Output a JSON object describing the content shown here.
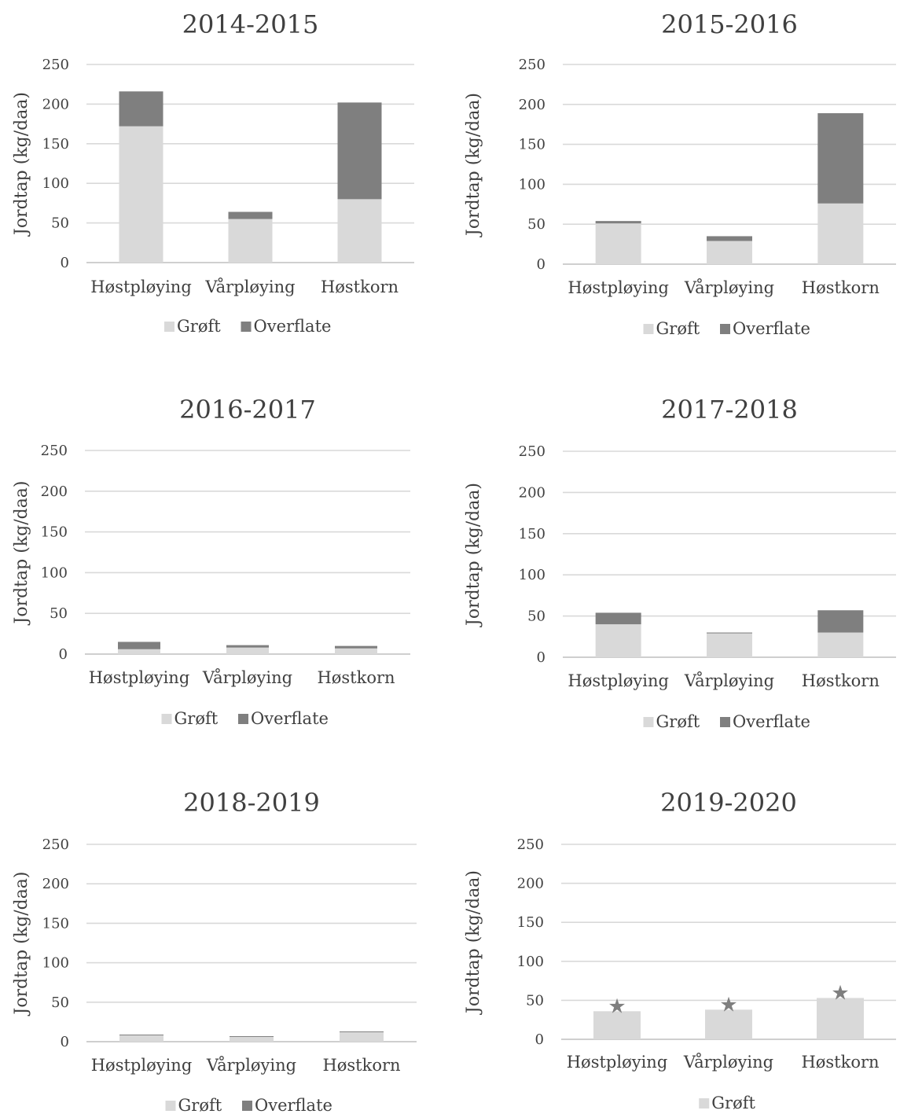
{
  "chart_data": [
    {
      "type": "bar",
      "stacked": true,
      "title": "2014-2015",
      "ylabel": "Jordtap (kg/daa)",
      "xlabel": "",
      "ylim": [
        0,
        250
      ],
      "yticks": [
        0,
        50,
        100,
        150,
        200,
        250
      ],
      "grid": true,
      "legend": "bottom",
      "categories": [
        "Høstpløying",
        "Vårpløying",
        "Høstkorn"
      ],
      "series": [
        {
          "name": "Grøft",
          "color": "#d9d9d9",
          "values": [
            172,
            55,
            80
          ]
        },
        {
          "name": "Overflate",
          "color": "#7f7f7f",
          "values": [
            44,
            9,
            122
          ]
        }
      ]
    },
    {
      "type": "bar",
      "stacked": true,
      "title": "2015-2016",
      "ylabel": "Jordtap (kg/daa)",
      "xlabel": "",
      "ylim": [
        0,
        250
      ],
      "yticks": [
        0,
        50,
        100,
        150,
        200,
        250
      ],
      "grid": true,
      "legend": "bottom",
      "categories": [
        "Høstpløying",
        "Vårpløying",
        "Høstkorn"
      ],
      "series": [
        {
          "name": "Grøft",
          "color": "#d9d9d9",
          "values": [
            51,
            29,
            76
          ]
        },
        {
          "name": "Overflate",
          "color": "#7f7f7f",
          "values": [
            3,
            6,
            113
          ]
        }
      ]
    },
    {
      "type": "bar",
      "stacked": true,
      "title": "2016-2017",
      "ylabel": "Jordtap (kg/daa)",
      "xlabel": "",
      "ylim": [
        0,
        250
      ],
      "yticks": [
        0,
        50,
        100,
        150,
        200,
        250
      ],
      "grid": true,
      "legend": "bottom",
      "categories": [
        "Høstpløying",
        "Vårpløying",
        "Høstkorn"
      ],
      "series": [
        {
          "name": "Grøft",
          "color": "#d9d9d9",
          "values": [
            6,
            8,
            7
          ]
        },
        {
          "name": "Overflate",
          "color": "#7f7f7f",
          "values": [
            9,
            3,
            3
          ]
        }
      ]
    },
    {
      "type": "bar",
      "stacked": true,
      "title": "2017-2018",
      "ylabel": "Jordtap (kg/daa)",
      "xlabel": "",
      "ylim": [
        0,
        250
      ],
      "yticks": [
        0,
        50,
        100,
        150,
        200,
        250
      ],
      "grid": true,
      "legend": "bottom",
      "categories": [
        "Høstpløying",
        "Vårpløying",
        "Høstkorn"
      ],
      "series": [
        {
          "name": "Grøft",
          "color": "#d9d9d9",
          "values": [
            40,
            29,
            30
          ]
        },
        {
          "name": "Overflate",
          "color": "#7f7f7f",
          "values": [
            14,
            1,
            27
          ]
        }
      ]
    },
    {
      "type": "bar",
      "stacked": true,
      "title": "2018-2019",
      "ylabel": "Jordtap (kg/daa)",
      "xlabel": "",
      "ylim": [
        0,
        250
      ],
      "yticks": [
        0,
        50,
        100,
        150,
        200,
        250
      ],
      "grid": true,
      "legend": "bottom",
      "categories": [
        "Høstpløying",
        "Vårpløying",
        "Høstkorn"
      ],
      "series": [
        {
          "name": "Grøft",
          "color": "#d9d9d9",
          "values": [
            8,
            6,
            12
          ]
        },
        {
          "name": "Overflate",
          "color": "#7f7f7f",
          "values": [
            1,
            1,
            1
          ]
        }
      ]
    },
    {
      "type": "bar",
      "stacked": true,
      "title": "2019-2020",
      "ylabel": "Jordtap (kg/daa)",
      "xlabel": "",
      "ylim": [
        0,
        250
      ],
      "yticks": [
        0,
        50,
        100,
        150,
        200,
        250
      ],
      "grid": true,
      "legend": "bottom",
      "categories": [
        "Høstpløying",
        "Vårpløying",
        "Høstkorn"
      ],
      "series": [
        {
          "name": "Grøft",
          "color": "#d9d9d9",
          "values": [
            36,
            38,
            53
          ]
        }
      ],
      "annotations": {
        "marker": "star-icon",
        "symbol": "★",
        "color": "#7f7f7f",
        "on": [
          "Høstpløying",
          "Vårpløying",
          "Høstkorn"
        ]
      }
    }
  ]
}
